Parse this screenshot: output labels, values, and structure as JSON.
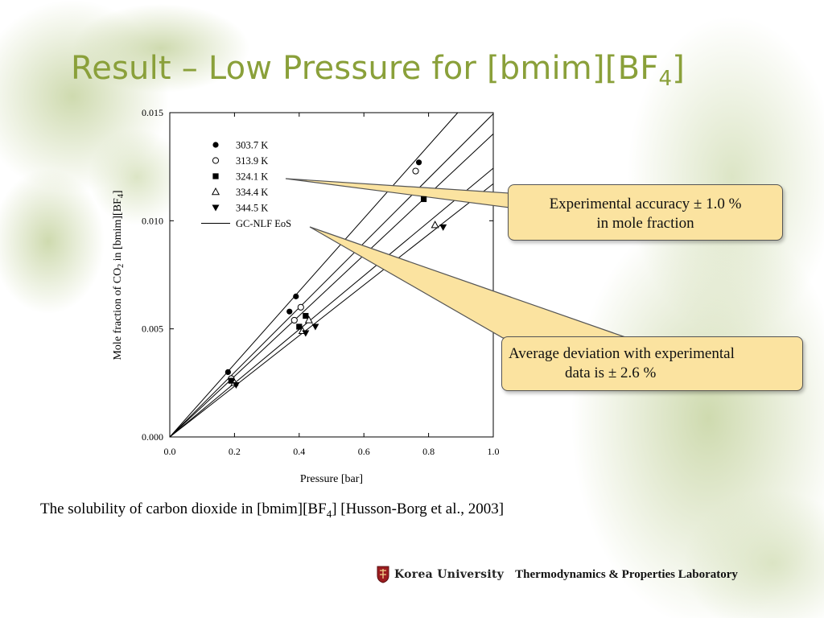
{
  "title": {
    "main": "Result – Low Pressure for [bmim][BF",
    "sub": "4",
    "close": "]"
  },
  "chart_data": {
    "type": "scatter",
    "xlabel": "Pressure [bar]",
    "ylabel": {
      "pre": "Mole fraction of CO",
      "sub1": "2",
      "mid": " in [bmim][BF",
      "sub2": "4",
      "post": "]"
    },
    "xlim": [
      0.0,
      1.0
    ],
    "ylim": [
      0.0,
      0.015
    ],
    "xticks": [
      "0.0",
      "0.2",
      "0.4",
      "0.6",
      "0.8",
      "1.0"
    ],
    "yticks": [
      "0.000",
      "0.005",
      "0.010",
      "0.015"
    ],
    "grid": false,
    "legend_position": "top-left",
    "series": [
      {
        "name": "303.7 K",
        "marker": "filled-circle",
        "x": [
          0.18,
          0.37,
          0.39,
          0.77
        ],
        "y": [
          0.003,
          0.0058,
          0.0065,
          0.0127
        ]
      },
      {
        "name": "313.9 K",
        "marker": "open-circle",
        "x": [
          0.19,
          0.385,
          0.405,
          0.76
        ],
        "y": [
          0.0027,
          0.0054,
          0.006,
          0.0123
        ]
      },
      {
        "name": "324.1 K",
        "marker": "filled-square",
        "x": [
          0.19,
          0.4,
          0.42,
          0.785
        ],
        "y": [
          0.0026,
          0.0051,
          0.0056,
          0.011
        ]
      },
      {
        "name": "334.4 K",
        "marker": "open-triangle-up",
        "x": [
          0.2,
          0.41,
          0.43,
          0.82
        ],
        "y": [
          0.0025,
          0.0049,
          0.0054,
          0.0098
        ]
      },
      {
        "name": "344.5 K",
        "marker": "filled-triangle-down",
        "x": [
          0.205,
          0.42,
          0.45,
          0.845
        ],
        "y": [
          0.0024,
          0.0048,
          0.0051,
          0.0097
        ]
      }
    ],
    "lines": {
      "name": "GC-NLF EoS",
      "slopes": [
        0.01685,
        0.01495,
        0.01402,
        0.01243,
        0.01171
      ]
    }
  },
  "callouts": {
    "accuracy": {
      "line1": "Experimental accuracy ± 1.0 %",
      "line2": "in mole fraction"
    },
    "deviation": {
      "line1": "Average deviation with experimental",
      "line2": "data is ± 2.6 %"
    }
  },
  "caption": {
    "pre": "The solubility of carbon dioxide in [bmim][BF",
    "sub": "4",
    "post": "] [Husson-Borg et al., 2003]"
  },
  "footer": {
    "university": "Korea University",
    "lab": "Thermodynamics & Properties Laboratory"
  },
  "colors": {
    "title": "#8aa03a",
    "callout_fill": "#fbe3a0",
    "foliage": "#b9c98f"
  }
}
